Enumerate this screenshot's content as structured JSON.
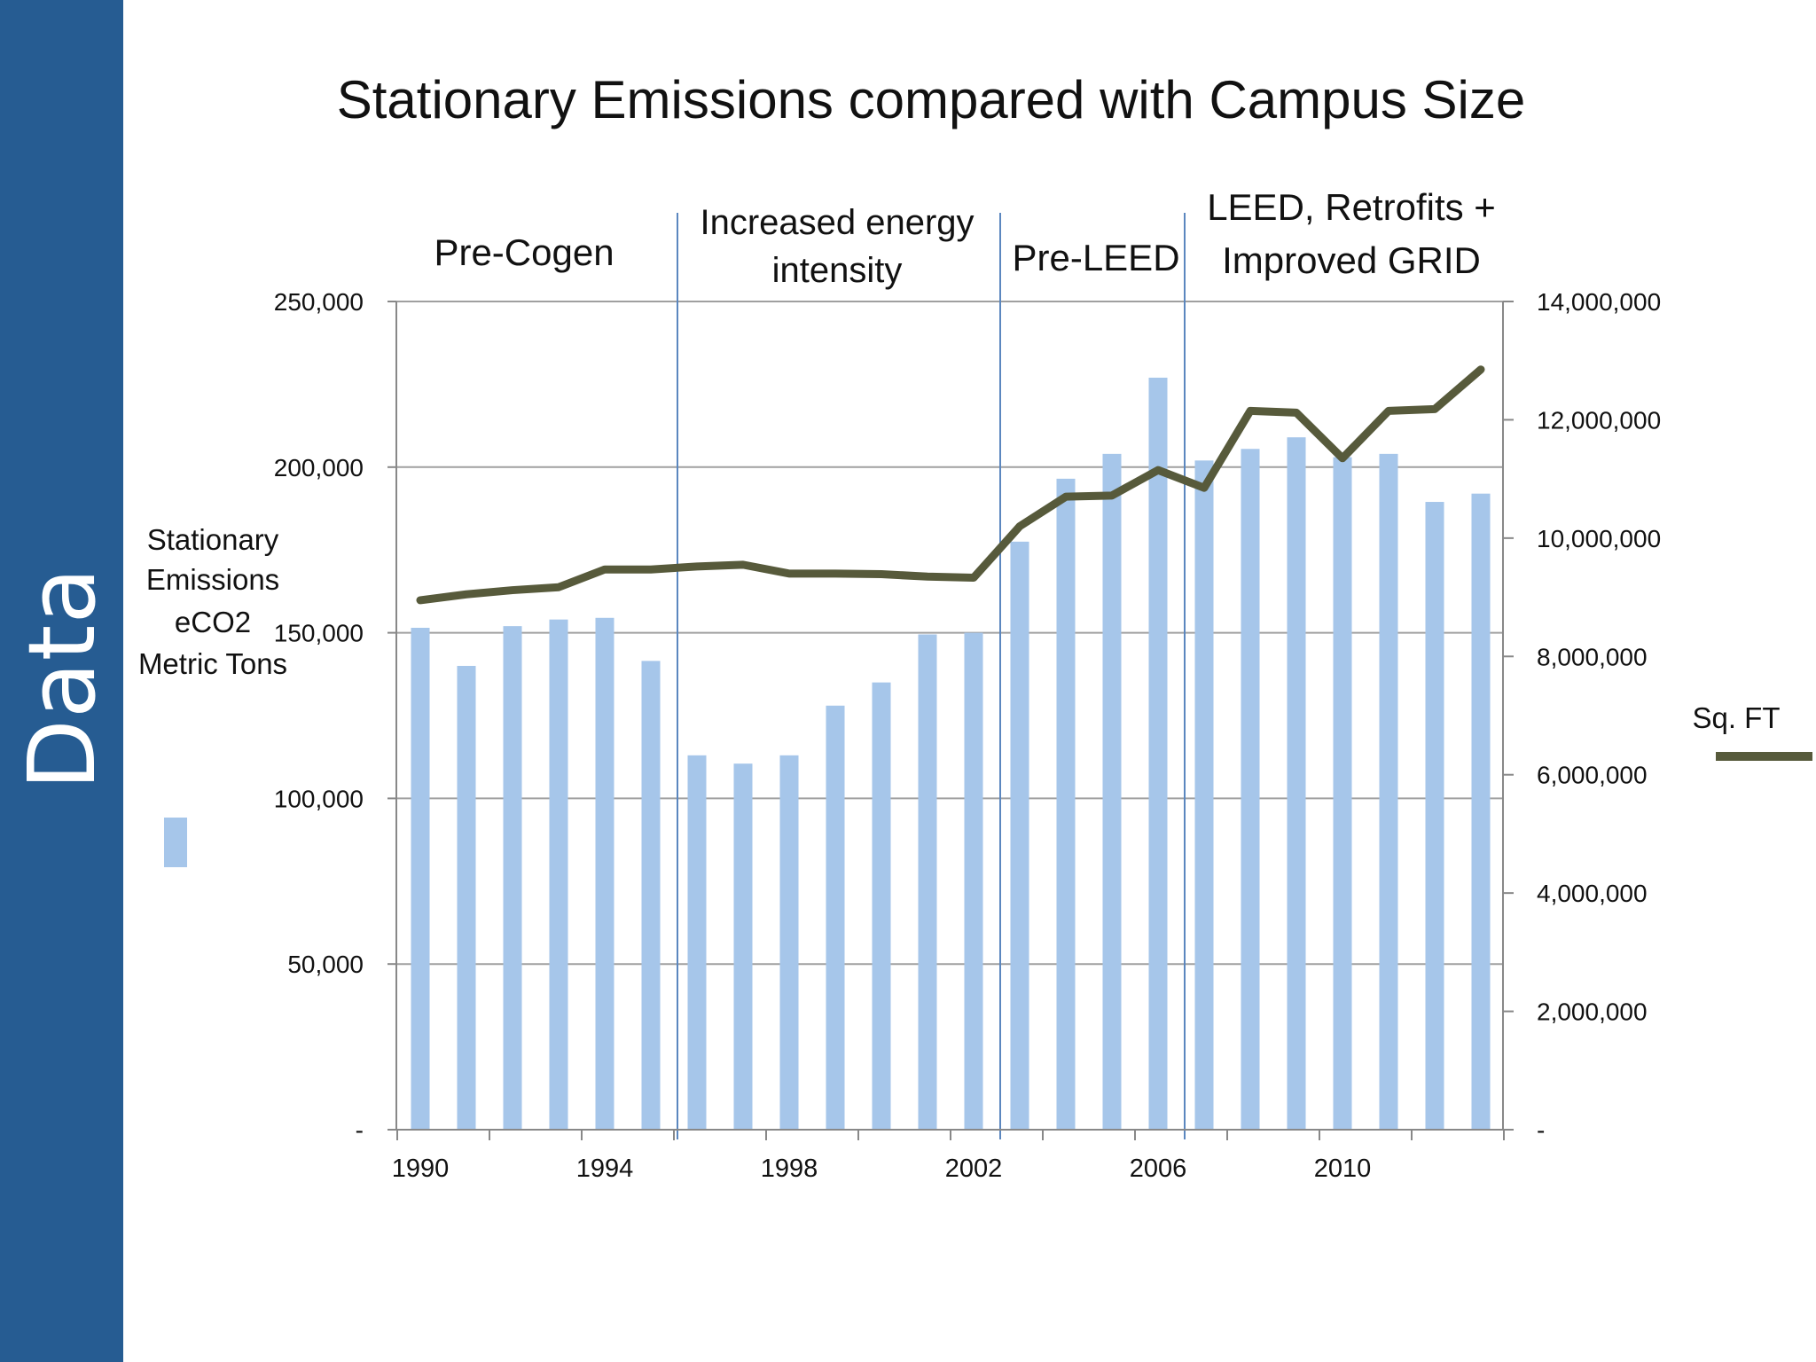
{
  "sidebar": {
    "label": "Data"
  },
  "chart_data": {
    "type": "bar",
    "title": "Stationary Emissions compared with Campus Size",
    "x": [
      1990,
      1991,
      1992,
      1993,
      1994,
      1995,
      1996,
      1997,
      1998,
      1999,
      2000,
      2001,
      2002,
      2003,
      2004,
      2005,
      2006,
      2007,
      2008,
      2009,
      2010,
      2011,
      2012,
      2013
    ],
    "x_tick_labels": [
      "1990",
      "1994",
      "1998",
      "2002",
      "2006",
      "2010"
    ],
    "series": [
      {
        "name": "",
        "type": "bar",
        "axis": "left",
        "color": "#a6c6ea",
        "values": [
          151500,
          140000,
          152000,
          154000,
          154500,
          141500,
          113000,
          110500,
          113000,
          128000,
          135000,
          149500,
          150000,
          177500,
          196500,
          204000,
          227000,
          202000,
          205500,
          209000,
          203000,
          204000,
          189500,
          192000
        ]
      },
      {
        "name": "Sq. FT",
        "type": "line",
        "axis": "right",
        "color": "#575a3b",
        "values": [
          8950000,
          9050000,
          9120000,
          9170000,
          9470000,
          9470000,
          9520000,
          9550000,
          9400000,
          9400000,
          9390000,
          9350000,
          9330000,
          10200000,
          10700000,
          10720000,
          11150000,
          10850000,
          12150000,
          12120000,
          11350000,
          12150000,
          12180000,
          12850000
        ]
      }
    ],
    "left_axis": {
      "label_lines": [
        "Stationary",
        "Emissions",
        "eCO2",
        "Metric Tons"
      ],
      "range": [
        0,
        250000
      ],
      "ticks": [
        0,
        50000,
        100000,
        150000,
        200000,
        250000
      ],
      "tick_labels": [
        "-",
        "50,000",
        "100,000",
        "150,000",
        "200,000",
        "250,000"
      ]
    },
    "right_axis": {
      "label": "Sq. FT",
      "range": [
        0,
        14000000
      ],
      "ticks": [
        0,
        2000000,
        4000000,
        6000000,
        8000000,
        10000000,
        12000000,
        14000000
      ],
      "tick_labels": [
        "-",
        "2,000,000",
        "4,000,000",
        "6,000,000",
        "8,000,000",
        "10,000,000",
        "12,000,000",
        "14,000,000"
      ]
    },
    "grid": true,
    "legend": "right",
    "period_dividers": [
      1995.5,
      2002.5,
      2006.5
    ],
    "periods": [
      {
        "lines": [
          "Pre-Cogen"
        ]
      },
      {
        "lines": [
          "Increased energy",
          "intensity"
        ]
      },
      {
        "lines": [
          "Pre-LEED"
        ]
      },
      {
        "lines": [
          "LEED, Retrofits +",
          "Improved GRID"
        ]
      }
    ]
  }
}
